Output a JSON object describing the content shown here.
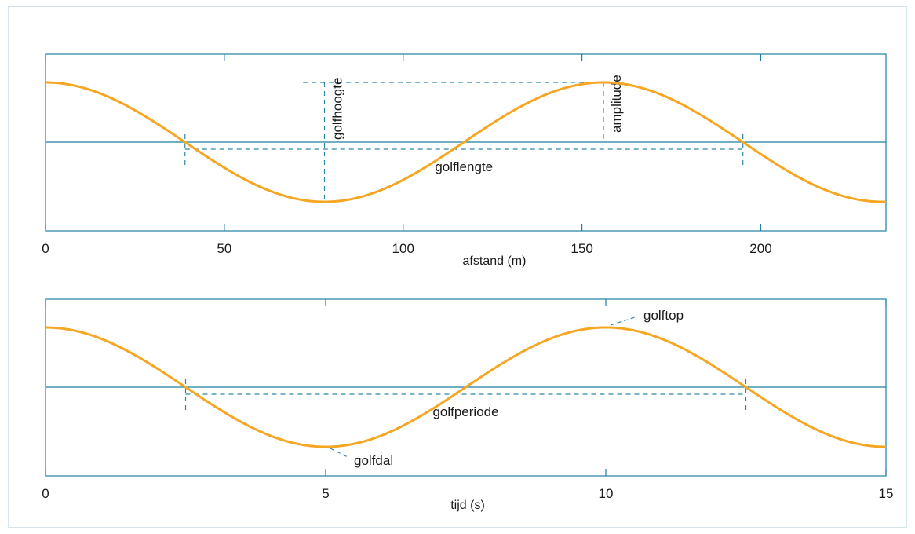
{
  "colors": {
    "frame_border": "#d6e4ec",
    "axis": "#1f7ea1",
    "wave": "#f5a623",
    "dashed": "#2d87ab",
    "text": "#1a1a1a"
  },
  "chart_data": [
    {
      "type": "line",
      "title": "",
      "xlabel": "afstand (m)",
      "ylabel": "",
      "xlim": [
        0,
        235
      ],
      "ylim": [
        -1.45,
        1.45
      ],
      "x_ticks": [
        0,
        50,
        100,
        150,
        200
      ],
      "x_tick_labels": [
        "0",
        "50",
        "100",
        "150",
        "200"
      ],
      "grid": false,
      "series": [
        {
          "kind": "cosine",
          "x": [
            0,
            39,
            78,
            117,
            156,
            195,
            235
          ],
          "y": [
            1,
            0,
            -1,
            0,
            1,
            0,
            -1
          ]
        }
      ],
      "annotations": [
        {
          "text": "golflengte",
          "x_start": 39,
          "x_end": 195,
          "type": "horizontal-span"
        },
        {
          "text": "golfhoogte",
          "x": 78,
          "y_start": -1,
          "y_end": 1,
          "type": "vertical-span"
        },
        {
          "text": "amplitude",
          "x": 156,
          "y_start": 0,
          "y_end": 1,
          "type": "vertical-span"
        }
      ]
    },
    {
      "type": "line",
      "title": "",
      "xlabel": "tijd (s)",
      "ylabel": "",
      "xlim": [
        0,
        15
      ],
      "ylim": [
        -1.45,
        1.45
      ],
      "x_ticks": [
        0,
        5,
        10,
        15
      ],
      "x_tick_labels": [
        "0",
        "5",
        "10",
        "15"
      ],
      "grid": false,
      "series": [
        {
          "kind": "cosine",
          "x": [
            0,
            2.5,
            5,
            7.5,
            10,
            12.5,
            15
          ],
          "y": [
            1,
            0,
            -1,
            0,
            1,
            0,
            -1
          ]
        }
      ],
      "annotations": [
        {
          "text": "golfperiode",
          "x_start": 2.5,
          "x_end": 12.5,
          "type": "horizontal-span"
        },
        {
          "text": "golftop",
          "x": 10,
          "y": 1,
          "type": "point-label"
        },
        {
          "text": "golfdal",
          "x": 5,
          "y": -1,
          "type": "point-label"
        }
      ]
    }
  ]
}
